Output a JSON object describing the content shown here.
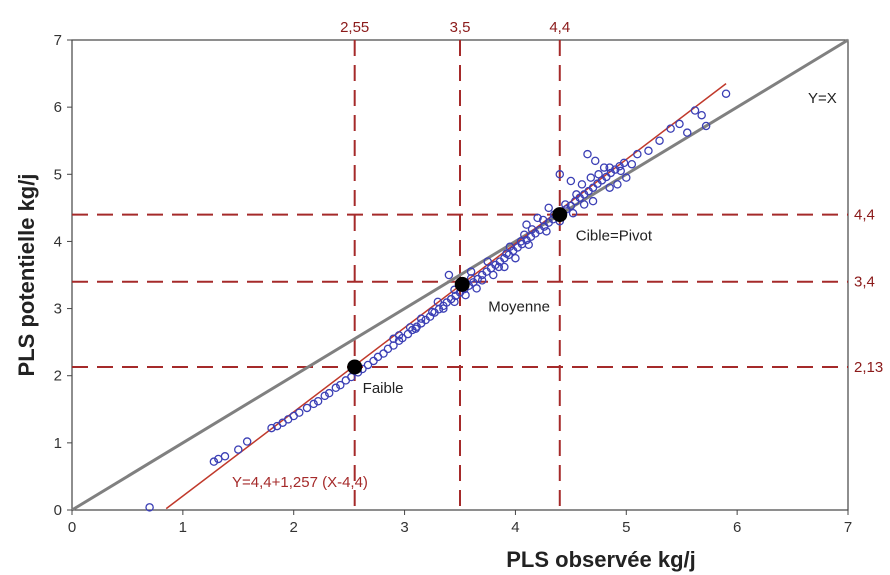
{
  "chart_data": {
    "type": "scatter",
    "xlabel": "PLS observée  kg/j",
    "ylabel": "PLS potentielle  kg/j",
    "xlim": [
      0,
      7
    ],
    "ylim": [
      0,
      7
    ],
    "x_ticks": [
      "0",
      "1",
      "2",
      "3",
      "4",
      "5",
      "6",
      "7"
    ],
    "y_ticks": [
      "0",
      "1",
      "2",
      "3",
      "4",
      "5",
      "6",
      "7"
    ],
    "grid": false,
    "colors": {
      "points": "#3b3fb5",
      "identity": "#808080",
      "regression": "#c0392b",
      "reference": "#a52a2a",
      "key_point": "#000000"
    },
    "vertical_refs": [
      {
        "x": 2.55,
        "label": "2,55"
      },
      {
        "x": 3.5,
        "label": "3,5"
      },
      {
        "x": 4.4,
        "label": "4,4"
      }
    ],
    "horizontal_refs": [
      {
        "y": 4.4,
        "label": "4,4"
      },
      {
        "y": 3.4,
        "label": "3,4"
      },
      {
        "y": 2.13,
        "label": "2,13"
      }
    ],
    "identity_line": {
      "label": "Y=X",
      "x": [
        0,
        7
      ],
      "y": [
        0,
        7
      ]
    },
    "regression_line": {
      "equation": "Y=4,4+1,257 (X-4,4)",
      "x": [
        0.85,
        5.9
      ],
      "y": [
        0.02,
        6.35
      ]
    },
    "key_points": [
      {
        "x": 2.55,
        "y": 2.13,
        "label": "Faible"
      },
      {
        "x": 3.52,
        "y": 3.36,
        "label": "Moyenne"
      },
      {
        "x": 4.4,
        "y": 4.4,
        "label": "Cible=Pivot"
      }
    ],
    "points": [
      [
        0.7,
        0.04
      ],
      [
        1.28,
        0.72
      ],
      [
        1.32,
        0.76
      ],
      [
        1.38,
        0.8
      ],
      [
        1.5,
        0.9
      ],
      [
        1.58,
        1.02
      ],
      [
        1.8,
        1.22
      ],
      [
        1.85,
        1.25
      ],
      [
        1.9,
        1.3
      ],
      [
        1.95,
        1.35
      ],
      [
        2.0,
        1.4
      ],
      [
        2.05,
        1.45
      ],
      [
        2.12,
        1.52
      ],
      [
        2.18,
        1.58
      ],
      [
        2.22,
        1.62
      ],
      [
        2.28,
        1.7
      ],
      [
        2.32,
        1.74
      ],
      [
        2.38,
        1.82
      ],
      [
        2.42,
        1.86
      ],
      [
        2.47,
        1.93
      ],
      [
        2.52,
        1.98
      ],
      [
        2.58,
        2.05
      ],
      [
        2.62,
        2.1
      ],
      [
        2.67,
        2.16
      ],
      [
        2.72,
        2.22
      ],
      [
        2.76,
        2.28
      ],
      [
        2.81,
        2.33
      ],
      [
        2.85,
        2.4
      ],
      [
        2.9,
        2.45
      ],
      [
        2.95,
        2.52
      ],
      [
        2.98,
        2.56
      ],
      [
        3.03,
        2.62
      ],
      [
        3.07,
        2.68
      ],
      [
        3.11,
        2.73
      ],
      [
        3.15,
        2.78
      ],
      [
        3.19,
        2.83
      ],
      [
        3.23,
        2.88
      ],
      [
        3.27,
        2.94
      ],
      [
        3.31,
        2.99
      ],
      [
        3.35,
        3.04
      ],
      [
        3.38,
        3.09
      ],
      [
        3.42,
        3.14
      ],
      [
        3.46,
        3.19
      ],
      [
        3.5,
        3.24
      ],
      [
        3.54,
        3.29
      ],
      [
        3.58,
        3.34
      ],
      [
        3.62,
        3.39
      ],
      [
        3.66,
        3.44
      ],
      [
        3.7,
        3.5
      ],
      [
        3.74,
        3.55
      ],
      [
        3.78,
        3.6
      ],
      [
        3.82,
        3.65
      ],
      [
        3.86,
        3.7
      ],
      [
        3.9,
        3.75
      ],
      [
        3.94,
        3.8
      ],
      [
        3.98,
        3.86
      ],
      [
        4.02,
        3.91
      ],
      [
        4.06,
        3.96
      ],
      [
        4.1,
        4.02
      ],
      [
        4.14,
        4.07
      ],
      [
        4.18,
        4.12
      ],
      [
        4.22,
        4.17
      ],
      [
        4.26,
        4.22
      ],
      [
        4.3,
        4.28
      ],
      [
        4.34,
        4.33
      ],
      [
        4.38,
        4.38
      ],
      [
        4.42,
        4.43
      ],
      [
        4.46,
        4.48
      ],
      [
        4.5,
        4.53
      ],
      [
        4.54,
        4.6
      ],
      [
        4.58,
        4.65
      ],
      [
        4.62,
        4.7
      ],
      [
        4.66,
        4.75
      ],
      [
        4.7,
        4.8
      ],
      [
        4.74,
        4.86
      ],
      [
        4.78,
        4.91
      ],
      [
        4.82,
        4.96
      ],
      [
        4.86,
        5.02
      ],
      [
        4.9,
        5.07
      ],
      [
        4.94,
        5.12
      ],
      [
        4.98,
        5.17
      ],
      [
        2.9,
        2.55
      ],
      [
        3.1,
        2.7
      ],
      [
        3.3,
        3.1
      ],
      [
        3.45,
        3.28
      ],
      [
        3.6,
        3.45
      ],
      [
        3.7,
        3.42
      ],
      [
        3.85,
        3.62
      ],
      [
        3.95,
        3.92
      ],
      [
        4.05,
        4.0
      ],
      [
        4.15,
        4.18
      ],
      [
        4.25,
        4.32
      ],
      [
        4.35,
        4.4
      ],
      [
        4.45,
        4.55
      ],
      [
        4.55,
        4.7
      ],
      [
        4.6,
        4.85
      ],
      [
        4.68,
        4.95
      ],
      [
        4.75,
        5.0
      ],
      [
        4.85,
        5.1
      ],
      [
        4.95,
        5.05
      ],
      [
        5.05,
        5.15
      ],
      [
        5.1,
        5.3
      ],
      [
        5.2,
        5.35
      ],
      [
        5.3,
        5.5
      ],
      [
        5.4,
        5.68
      ],
      [
        5.48,
        5.75
      ],
      [
        5.55,
        5.62
      ],
      [
        5.62,
        5.95
      ],
      [
        5.72,
        5.72
      ],
      [
        5.68,
        5.88
      ],
      [
        5.9,
        6.2
      ],
      [
        4.4,
        5.0
      ],
      [
        4.5,
        4.9
      ],
      [
        4.65,
        5.3
      ],
      [
        4.72,
        5.2
      ],
      [
        4.8,
        5.1
      ],
      [
        4.3,
        4.5
      ],
      [
        4.2,
        4.35
      ],
      [
        4.1,
        4.25
      ],
      [
        3.4,
        3.5
      ],
      [
        3.6,
        3.55
      ],
      [
        3.75,
        3.7
      ],
      [
        3.55,
        3.2
      ],
      [
        3.65,
        3.3
      ],
      [
        3.8,
        3.5
      ],
      [
        3.9,
        3.62
      ],
      [
        4.0,
        3.75
      ],
      [
        4.12,
        3.95
      ],
      [
        4.28,
        4.15
      ],
      [
        4.4,
        4.3
      ],
      [
        4.52,
        4.42
      ],
      [
        4.62,
        4.55
      ],
      [
        4.7,
        4.6
      ],
      [
        4.85,
        4.8
      ],
      [
        4.92,
        4.85
      ],
      [
        5.0,
        4.95
      ],
      [
        3.25,
        2.95
      ],
      [
        3.15,
        2.85
      ],
      [
        3.05,
        2.72
      ],
      [
        2.95,
        2.6
      ],
      [
        3.45,
        3.1
      ],
      [
        3.35,
        3.0
      ],
      [
        4.08,
        4.1
      ],
      [
        3.92,
        3.82
      ]
    ]
  }
}
